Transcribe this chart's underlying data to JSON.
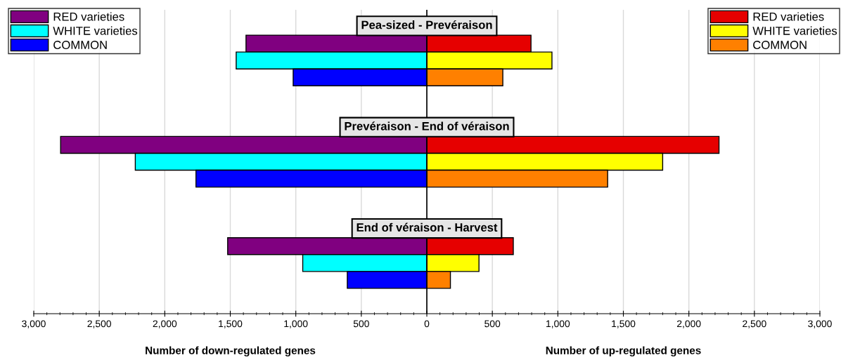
{
  "chart_data": {
    "type": "bar",
    "orientation": "horizontal",
    "categories": [
      null,
      null,
      null,
      null,
      null,
      null,
      null,
      null,
      null
    ],
    "series": [
      {
        "name": "RED varieties",
        "color": "#800080",
        "values": [
          -1380,
          null,
          null,
          -2795,
          null,
          null,
          -1520,
          null,
          null
        ]
      },
      {
        "name": "WHITE varieties",
        "color": "#00ffff",
        "values": [
          null,
          -1455,
          null,
          null,
          -2225,
          null,
          null,
          -947,
          null
        ]
      },
      {
        "name": "COMMON",
        "color": "#0000ff",
        "values": [
          null,
          null,
          -1020,
          null,
          null,
          -1762,
          null,
          null,
          -607
        ]
      },
      {
        "name": "RED varieties",
        "color": "#e60000",
        "values": [
          795,
          null,
          null,
          2230,
          null,
          null,
          660,
          null,
          null
        ]
      },
      {
        "name": "WHITE varieties",
        "color": "#ffff00",
        "values": [
          null,
          955,
          null,
          null,
          1800,
          null,
          null,
          398,
          null
        ]
      },
      {
        "name": "COMMON",
        "color": "#ff8000",
        "values": [
          null,
          null,
          580,
          null,
          null,
          1380,
          null,
          null,
          180
        ]
      }
    ],
    "xlim": [
      -3000,
      3000
    ],
    "xticks": [
      {
        "value": -3000,
        "label": "3,000"
      },
      {
        "value": -2500,
        "label": "2,500"
      },
      {
        "value": -2000,
        "label": "2,000"
      },
      {
        "value": -1500,
        "label": "1,500"
      },
      {
        "value": -1000,
        "label": "1,000"
      },
      {
        "value": -500,
        "label": "500"
      },
      0,
      500,
      {
        "value": 1000,
        "label": "1,000"
      },
      {
        "value": 1500,
        "label": "1,500"
      },
      {
        "value": 2000,
        "label": "2,000"
      },
      {
        "value": 2500,
        "label": "2,500"
      },
      {
        "value": 3000,
        "label": "3,000"
      }
    ],
    "ref_lines": [
      {
        "axis": "x",
        "value": 0,
        "color": "#000000"
      }
    ],
    "annotations": [
      "Pea-sized - Prevéraison",
      "Prevéraison - End of véraison",
      "End of véraison - Harvest",
      "Number of down-regulated genes",
      "Number of up-regulated genes"
    ],
    "stacked": true,
    "grid": "x",
    "legend": "top",
    "tick_labels": "x"
  }
}
